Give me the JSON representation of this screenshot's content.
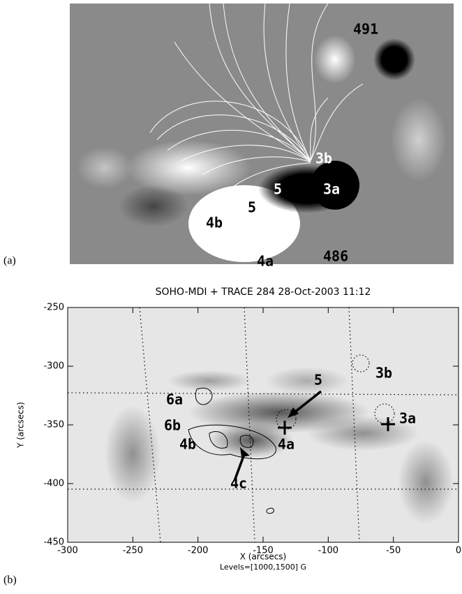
{
  "panel_a": {
    "label": "(a)",
    "annotations": [
      "491",
      "3b",
      "5",
      "3a",
      "5",
      "4b",
      "4a",
      "486"
    ]
  },
  "panel_b": {
    "label": "(b)",
    "title": "SOHO-MDI + TRACE 284 28-Oct-2003 11:12",
    "x_label": "X (arcsecs)",
    "y_label": "Y (arcsecs)",
    "levels": "Levels=[1000,1500] G",
    "xlim": [
      -300,
      0
    ],
    "ylim": [
      -450,
      -250
    ],
    "xticks": [
      -300,
      -250,
      -200,
      -150,
      -100,
      -50,
      0
    ],
    "yticks": [
      -450,
      -400,
      -350,
      -300,
      -250
    ],
    "annotations": [
      "5",
      "3b",
      "6a",
      "3a",
      "6b",
      "4b",
      "4a",
      "4c"
    ]
  }
}
